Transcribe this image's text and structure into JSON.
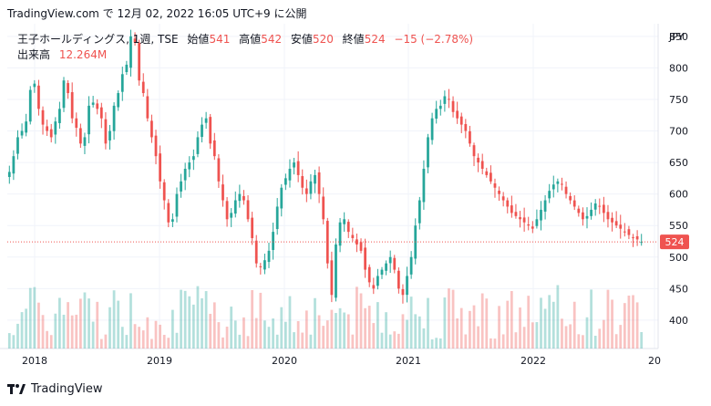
{
  "header": {
    "watermark_text": "TradingView.com で 12月 02, 2022 16:05 UTC+9 に公開"
  },
  "legend": {
    "symbol": "王子ホールディングス, 1週, TSE",
    "open_label": "始値",
    "open": "541",
    "high_label": "高値",
    "high": "542",
    "low_label": "安値",
    "low": "520",
    "close_label": "終値",
    "close": "524",
    "change": "−15 (−2.78%)",
    "volume_label": "出来高",
    "volume": "12.264M"
  },
  "footer": {
    "brand": "TradingView"
  },
  "colors": {
    "up": "#26a69a",
    "down": "#ef5350",
    "grid": "#f0f3fa"
  },
  "chart_data": {
    "type": "candlestick",
    "currency_label": "JPY",
    "y_ticks": [
      400,
      450,
      500,
      550,
      600,
      650,
      700,
      750,
      800,
      850
    ],
    "ylim": [
      355,
      870
    ],
    "x_ticks": [
      "2018",
      "2019",
      "2020",
      "2021",
      "2022",
      "20"
    ],
    "last_price_label": "524",
    "series_close": [
      635,
      660,
      690,
      700,
      715,
      765,
      775,
      735,
      710,
      700,
      690,
      715,
      735,
      780,
      760,
      720,
      705,
      680,
      690,
      740,
      745,
      735,
      720,
      680,
      700,
      740,
      760,
      790,
      805,
      850,
      840,
      780,
      760,
      720,
      690,
      660,
      620,
      590,
      555,
      560,
      600,
      620,
      640,
      650,
      660,
      690,
      710,
      720,
      680,
      660,
      620,
      590,
      560,
      570,
      590,
      600,
      590,
      560,
      530,
      490,
      485,
      495,
      510,
      540,
      580,
      610,
      625,
      640,
      650,
      630,
      610,
      600,
      620,
      630,
      600,
      560,
      490,
      440,
      520,
      555,
      560,
      540,
      530,
      520,
      510,
      480,
      460,
      450,
      470,
      480,
      490,
      500,
      480,
      450,
      440,
      470,
      500,
      550,
      590,
      640,
      690,
      720,
      735,
      740,
      755,
      750,
      730,
      720,
      710,
      700,
      680,
      660,
      650,
      640,
      630,
      620,
      610,
      600,
      590,
      580,
      570,
      565,
      560,
      555,
      550,
      545,
      560,
      575,
      590,
      605,
      615,
      620,
      615,
      600,
      590,
      580,
      570,
      560,
      565,
      575,
      585,
      580,
      570,
      560,
      555,
      550,
      545,
      540,
      535,
      530,
      528,
      524
    ]
  }
}
